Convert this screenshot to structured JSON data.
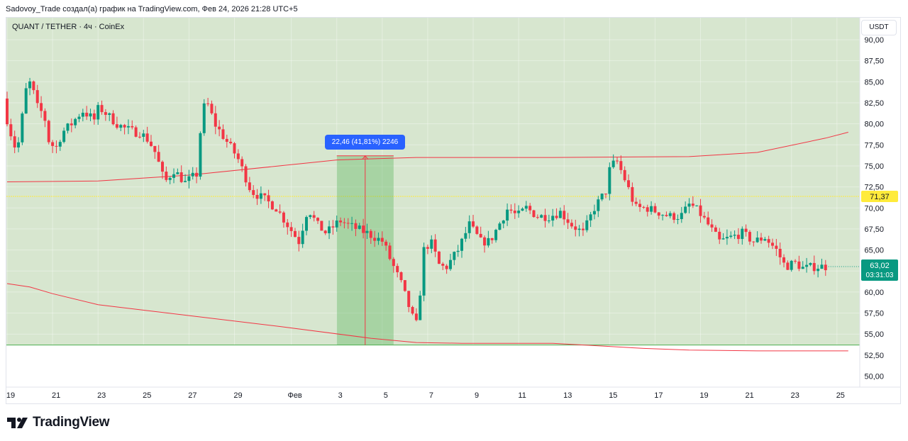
{
  "header": {
    "text": "Sadovoy_Trade создал(а) график на TradingView.com, Фев 24, 2026 21:28 UTC+5"
  },
  "legend": {
    "symbol": "QUANT / TETHER · 4ч · CoinEx"
  },
  "price_axis": {
    "currency_label": "USDT"
  },
  "measure": {
    "label": "22,46 (41,81%) 2246"
  },
  "logo": {
    "text": "TradingView"
  },
  "chart_data": {
    "type": "candlestick",
    "ylim": [
      48.5,
      91
    ],
    "y_ticks": [
      "90,00",
      "87,50",
      "85,00",
      "82,50",
      "80,00",
      "77,50",
      "75,00",
      "72,50",
      "70,00",
      "67,50",
      "65,00",
      "62,50",
      "60,00",
      "57,50",
      "55,00",
      "52,50",
      "50,00"
    ],
    "y_tick_values": [
      90,
      87.5,
      85,
      82.5,
      80,
      77.5,
      75,
      72.5,
      70,
      67.5,
      65,
      62.5,
      60,
      57.5,
      55,
      52.5,
      50
    ],
    "x_ticks": [
      "19",
      "21",
      "23",
      "25",
      "27",
      "29",
      "Фев",
      "3",
      "5",
      "7",
      "9",
      "11",
      "13",
      "15",
      "17",
      "19",
      "21",
      "23",
      "25"
    ],
    "x_tick_days": [
      0,
      2,
      4,
      6,
      8,
      10,
      12.5,
      14.5,
      16.5,
      18.5,
      20.5,
      22.5,
      24.5,
      26.5,
      28.5,
      30.5,
      32.5,
      34.5,
      36.5
    ],
    "x_range_days": [
      0,
      36.65
    ],
    "badges": [
      {
        "text": "71,37",
        "value": 71.37,
        "bg": "#ffeb3b",
        "fg": "#131722"
      },
      {
        "text": "63,02",
        "value": 63.02,
        "bg": "#089981",
        "fg": "#ffffff"
      },
      {
        "text": "03:31:03",
        "value": 63.02,
        "bg": "#089981",
        "fg": "#ffffff"
      }
    ],
    "horizontal_lines": [
      {
        "name": "yellow",
        "value": 71.37,
        "color": "#ffeb3b"
      },
      {
        "name": "green",
        "value": 53.7,
        "color": "#4caf50"
      }
    ],
    "curves": [
      {
        "name": "upper-band",
        "color": "#f23645",
        "points": [
          [
            0,
            73.1
          ],
          [
            4,
            73.2
          ],
          [
            8,
            73.9
          ],
          [
            12,
            75
          ],
          [
            14.5,
            75.7
          ],
          [
            18,
            76
          ],
          [
            24,
            76
          ],
          [
            30,
            76.1
          ],
          [
            33,
            76.6
          ],
          [
            36,
            78.3
          ],
          [
            37,
            79
          ]
        ]
      },
      {
        "name": "lower-band",
        "color": "#f23645",
        "points": [
          [
            0,
            61
          ],
          [
            1,
            60.6
          ],
          [
            2,
            59.8
          ],
          [
            4,
            58.5
          ],
          [
            8,
            57.2
          ],
          [
            12,
            55.9
          ],
          [
            16,
            54.5
          ],
          [
            18,
            54
          ],
          [
            20,
            53.9
          ],
          [
            24,
            53.9
          ],
          [
            26,
            53.6
          ],
          [
            28,
            53.3
          ],
          [
            30,
            53.1
          ],
          [
            33,
            53
          ],
          [
            37,
            53
          ]
        ]
      }
    ],
    "measure_range": {
      "x_start_days": 14.5,
      "x_end_days": 17,
      "y_from": 53.7,
      "y_to": 76.2,
      "color": "#4caf50"
    },
    "colors": {
      "background_tint": "#d7e6cf",
      "up": "#089981",
      "down": "#f23645",
      "grid": "#e9eee5"
    },
    "anchors": [
      [
        0,
        83
      ],
      [
        0.2,
        80
      ],
      [
        0.6,
        76.5
      ],
      [
        1,
        84
      ],
      [
        1.2,
        85
      ],
      [
        1.5,
        82
      ],
      [
        1.8,
        81
      ],
      [
        2,
        78
      ],
      [
        2.3,
        77
      ],
      [
        2.6,
        79
      ],
      [
        3,
        80
      ],
      [
        3.3,
        81
      ],
      [
        3.5,
        81.5
      ],
      [
        4,
        80.5
      ],
      [
        4.2,
        82
      ],
      [
        4.6,
        81
      ],
      [
        5,
        80
      ],
      [
        5.3,
        79.5
      ],
      [
        5.8,
        79
      ],
      [
        6,
        79
      ],
      [
        6.4,
        78
      ],
      [
        6.7,
        76.5
      ],
      [
        7.1,
        73
      ],
      [
        7.5,
        74.5
      ],
      [
        8,
        73
      ],
      [
        8.5,
        74
      ],
      [
        8.7,
        80
      ],
      [
        8.9,
        83
      ],
      [
        9.3,
        80
      ],
      [
        9.8,
        78
      ],
      [
        10.3,
        76
      ],
      [
        10.9,
        72
      ],
      [
        11.5,
        71
      ],
      [
        12,
        70
      ],
      [
        12.5,
        68
      ],
      [
        13,
        66
      ],
      [
        13.4,
        70
      ],
      [
        13.8,
        68
      ],
      [
        14.2,
        67
      ],
      [
        14.8,
        68.5
      ],
      [
        15.3,
        67.8
      ],
      [
        16,
        67
      ],
      [
        16.7,
        66
      ],
      [
        17,
        64
      ],
      [
        17.5,
        61
      ],
      [
        18,
        57
      ],
      [
        18.2,
        56
      ],
      [
        18.5,
        65
      ],
      [
        18.8,
        66
      ],
      [
        19.2,
        63
      ],
      [
        19.5,
        63
      ],
      [
        20,
        65
      ],
      [
        20.5,
        68
      ],
      [
        21,
        66
      ],
      [
        21.4,
        66
      ],
      [
        21.8,
        68
      ],
      [
        22.2,
        70
      ],
      [
        22.6,
        69
      ],
      [
        23,
        70
      ],
      [
        23.5,
        69
      ],
      [
        24,
        69
      ],
      [
        24.5,
        69.5
      ],
      [
        25,
        68
      ],
      [
        25.5,
        67
      ],
      [
        26,
        70
      ],
      [
        26.5,
        72
      ],
      [
        26.7,
        75
      ],
      [
        27,
        75.5
      ],
      [
        27.4,
        73
      ],
      [
        27.8,
        70
      ],
      [
        28.3,
        70
      ],
      [
        28.8,
        69.5
      ],
      [
        29.3,
        69
      ],
      [
        29.8,
        69
      ],
      [
        30.2,
        70.5
      ],
      [
        30.6,
        69.5
      ],
      [
        31,
        68
      ],
      [
        31.5,
        66
      ],
      [
        32,
        66.5
      ],
      [
        32.5,
        67
      ],
      [
        33,
        66
      ],
      [
        33.5,
        66.5
      ],
      [
        34,
        65
      ],
      [
        34.4,
        63
      ],
      [
        34.8,
        63.5
      ],
      [
        35.2,
        62.8
      ],
      [
        35.6,
        63
      ],
      [
        36,
        63.02
      ]
    ]
  }
}
